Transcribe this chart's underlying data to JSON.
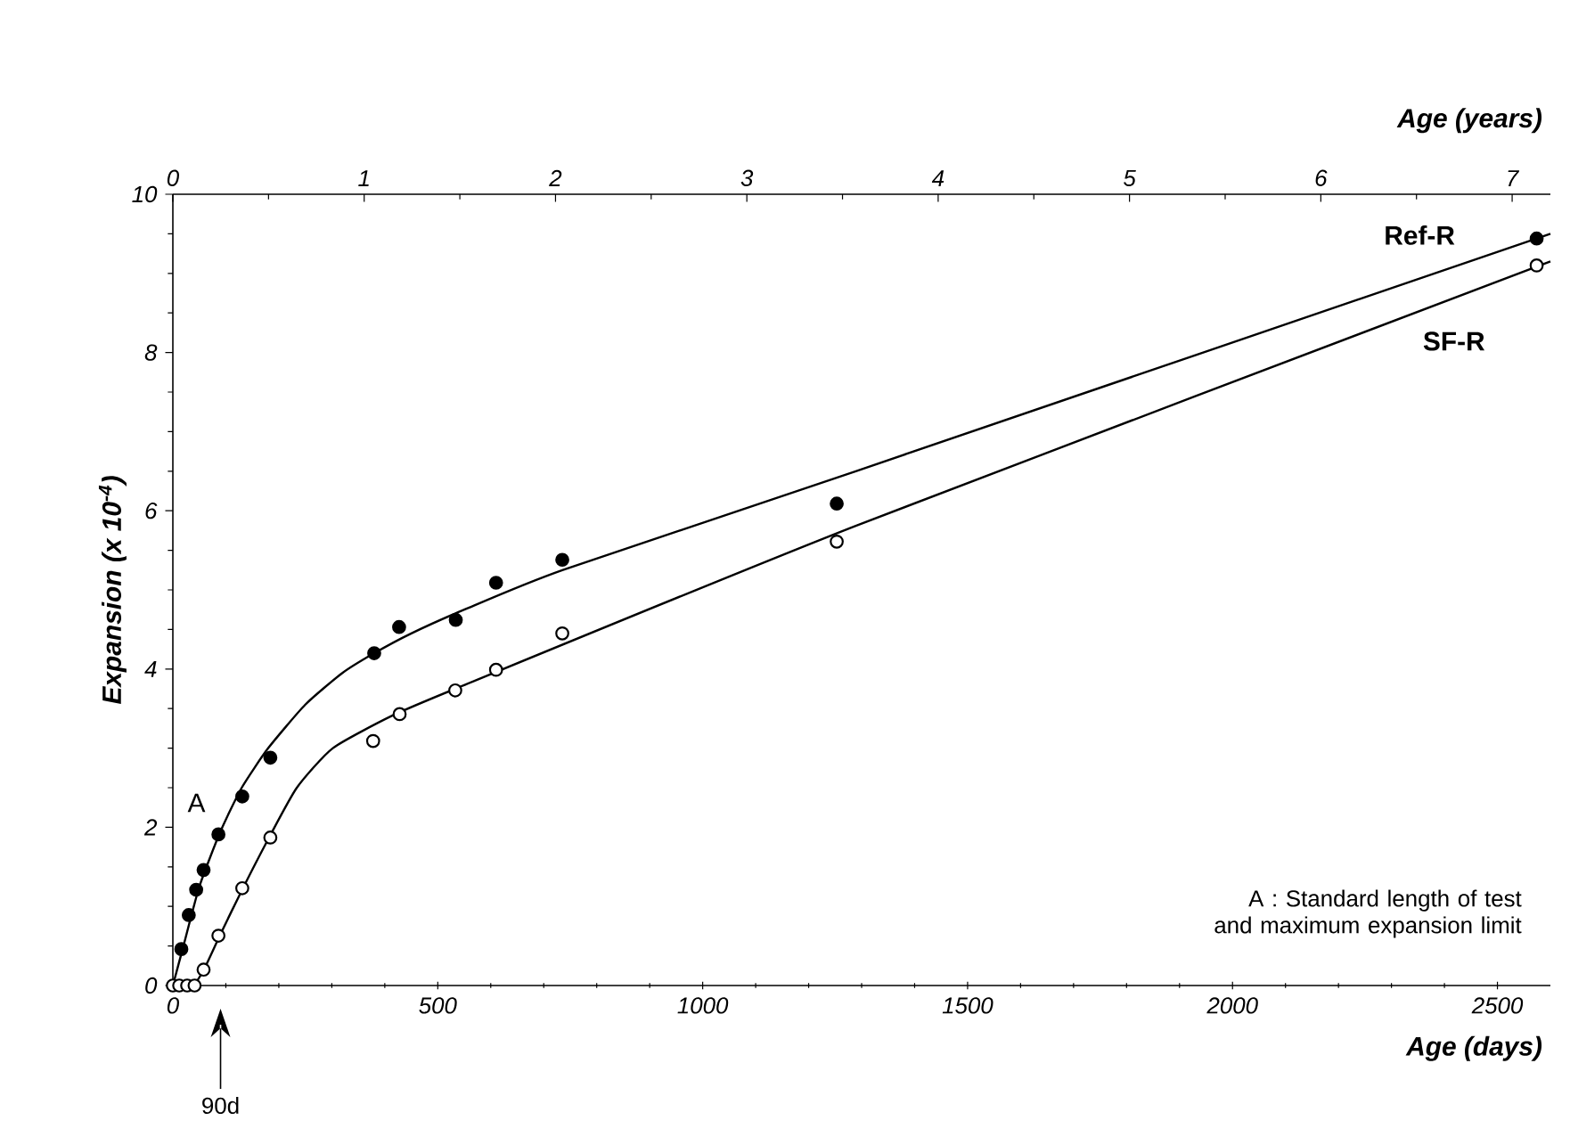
{
  "chart_data": {
    "type": "scatter",
    "xlabel": "Age (days)",
    "x2label": "Age (years)",
    "ylabel": "Expansion (x 10$^{-4}$)",
    "xlim": [
      0,
      2600
    ],
    "xticks": [
      0,
      500,
      1000,
      1500,
      2000,
      2500
    ],
    "x2lim": [
      0,
      7.2
    ],
    "x2ticks": [
      0,
      1,
      2,
      3,
      4,
      5,
      6,
      7
    ],
    "ylim": [
      0,
      10
    ],
    "yticks": [
      0,
      2,
      4,
      6,
      8,
      10
    ],
    "series": [
      {
        "color": "#000000",
        "marker": "circle",
        "x": [
          16,
          30,
          44,
          58,
          86,
          131,
          184,
          380,
          427,
          534,
          610,
          735,
          1253,
          2574
        ],
        "values": [
          0.46,
          0.89,
          1.21,
          1.46,
          1.91,
          2.39,
          2.88,
          4.2,
          4.53,
          4.62,
          5.09,
          5.38,
          6.09,
          9.44
        ]
      },
      {
        "color": "#ffffff",
        "marker": "circle",
        "x": [
          0,
          12,
          27,
          41,
          58,
          86,
          131,
          184,
          378,
          428,
          533,
          610,
          735,
          1253,
          2574
        ],
        "values": [
          0,
          0,
          0,
          0,
          0.2,
          0.63,
          1.23,
          1.87,
          3.09,
          3.43,
          3.73,
          3.99,
          4.45,
          5.61,
          9.1
        ]
      },
      {
        "type": "line",
        "name": "Ref-R",
        "color": "#000000",
        "x": [
          0,
          20,
          50,
          90,
          130,
          180,
          250,
          320,
          380,
          450,
          550,
          735,
          1289,
          2600
        ],
        "values": [
          0,
          0.5,
          1.25,
          1.95,
          2.5,
          3.0,
          3.55,
          3.95,
          4.2,
          4.45,
          4.75,
          5.25,
          6.5,
          9.5
        ]
      },
      {
        "type": "line",
        "name": "SF-R",
        "color": "#000000",
        "x": [
          0,
          40,
          60,
          90,
          130,
          180,
          234,
          302,
          414,
          533,
          1289,
          2600
        ],
        "values": [
          0,
          0.02,
          0.22,
          0.65,
          1.2,
          1.85,
          2.5,
          3.0,
          3.41,
          3.75,
          5.81,
          9.15
        ]
      }
    ],
    "annotations": [
      {
        "text": "A",
        "x": 90,
        "y": 2
      },
      "90d",
      "A : Standard length of test and maximum expansion limit"
    ]
  }
}
